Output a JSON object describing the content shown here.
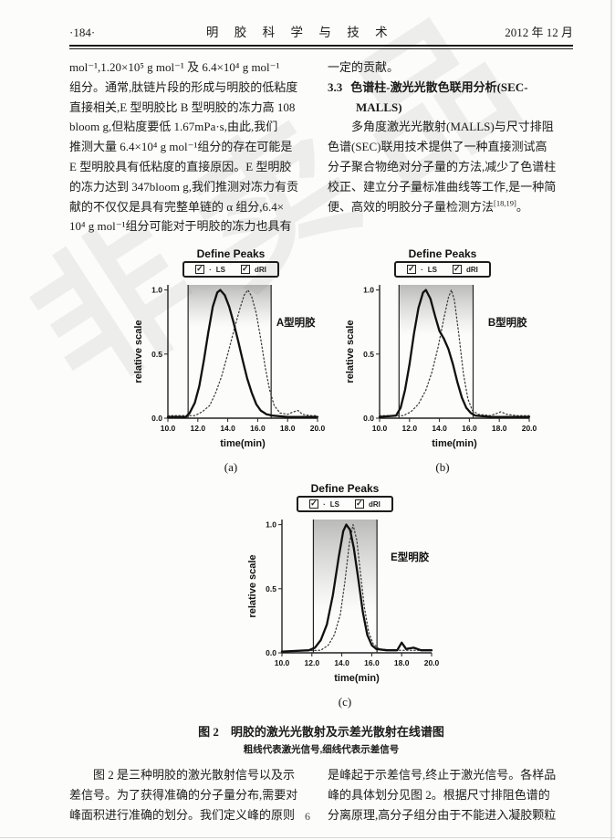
{
  "watermark": {
    "text": "非卖品"
  },
  "header": {
    "page_label": "·184·",
    "journal_title": "明 胶 科 学 与 技 术",
    "issue_date": "2012 年 12 月"
  },
  "left_column": {
    "lines": [
      "mol⁻¹,1.20×10⁵ g mol⁻¹ 及 6.4×10⁴ g mol⁻¹",
      "组分。通常,肽链片段的形成与明胶的低粘度",
      "直接相关,E 型明胶比 B 型明胶的冻力高 108",
      "bloom g,但粘度要低 1.67mPa·s,由此,我们",
      "推测大量 6.4×10⁴ g mol⁻¹组分的存在可能是",
      "E 型明胶具有低粘度的直接原因。E 型明胶",
      "的冻力达到 347bloom g,我们推测对冻力有贡",
      "献的不仅仅是具有完整单链的 α 组分,6.4×",
      "10⁴ g mol⁻¹组分可能对于明胶的冻力也具有"
    ]
  },
  "right_column": {
    "carry_line": "一定的贡献。",
    "section_no": "3.3",
    "section_title_line1": "色谱柱-激光光散色联用分析(SEC-",
    "section_title_line2": "MALLS)",
    "body_lines": [
      "多角度激光光散射(MALLS)与尺寸排阻",
      "色谱(SEC)联用技术提供了一种直接测试高",
      "分子聚合物绝对分子量的方法,减少了色谱柱",
      "校正、建立分子量标准曲线等工作,是一种简"
    ],
    "last_line_text": "便、高效的明胶分子量检测方法",
    "last_line_ref": "[18,19]",
    "last_line_end": "。"
  },
  "figure": {
    "subfig_labels": [
      "(a)",
      "(b)",
      "(c)"
    ],
    "caption": "图 2　明胶的激光光散射及示差光散射在线谱图",
    "subcaption": "粗线代表激光信号,细线代表示差信号"
  },
  "chart_data": [
    {
      "type": "line",
      "panel": "a",
      "title": "Define Peaks",
      "legend": {
        "ls_label": "LS",
        "dri_label": "dRI",
        "separator": "·"
      },
      "sample_label": "A型明胶",
      "xlabel": "time(min)",
      "ylabel": "relative scale",
      "xlim": [
        10,
        20
      ],
      "ylim": [
        0,
        1.04
      ],
      "x_ticks": [
        10,
        12,
        14,
        16,
        18,
        20
      ],
      "y_ticks": [
        0,
        0.5,
        1
      ],
      "grid": false,
      "peak_region": [
        11.35,
        16.9
      ],
      "shade_depth": 0.32,
      "series": [
        {
          "name": "LS",
          "line": "solid",
          "points": [
            [
              10,
              0.01
            ],
            [
              11.2,
              0.01
            ],
            [
              11.45,
              0.04
            ],
            [
              11.8,
              0.12
            ],
            [
              12.1,
              0.25
            ],
            [
              12.4,
              0.45
            ],
            [
              12.7,
              0.67
            ],
            [
              13.0,
              0.87
            ],
            [
              13.3,
              0.98
            ],
            [
              13.5,
              1.0
            ],
            [
              13.8,
              0.96
            ],
            [
              14.1,
              0.87
            ],
            [
              14.4,
              0.74
            ],
            [
              14.7,
              0.6
            ],
            [
              15.0,
              0.45
            ],
            [
              15.3,
              0.31
            ],
            [
              15.6,
              0.2
            ],
            [
              15.9,
              0.11
            ],
            [
              16.2,
              0.06
            ],
            [
              16.6,
              0.03
            ],
            [
              17.0,
              0.02
            ],
            [
              18.0,
              0.01
            ],
            [
              20,
              0.01
            ]
          ]
        },
        {
          "name": "dRI",
          "line": "dotted",
          "points": [
            [
              10,
              0.02
            ],
            [
              11.8,
              0.02
            ],
            [
              12.3,
              0.05
            ],
            [
              12.8,
              0.1
            ],
            [
              13.2,
              0.2
            ],
            [
              13.6,
              0.33
            ],
            [
              14.0,
              0.5
            ],
            [
              14.4,
              0.68
            ],
            [
              14.8,
              0.85
            ],
            [
              15.1,
              0.96
            ],
            [
              15.35,
              1.0
            ],
            [
              15.6,
              0.95
            ],
            [
              15.9,
              0.82
            ],
            [
              16.2,
              0.62
            ],
            [
              16.5,
              0.4
            ],
            [
              16.8,
              0.22
            ],
            [
              17.1,
              0.1
            ],
            [
              17.5,
              0.04
            ],
            [
              18.0,
              0.03
            ],
            [
              18.4,
              0.05
            ],
            [
              18.7,
              0.06
            ],
            [
              19.0,
              0.03
            ],
            [
              19.5,
              0.02
            ],
            [
              20,
              0.02
            ]
          ]
        }
      ]
    },
    {
      "type": "line",
      "panel": "b",
      "title": "Define Peaks",
      "legend": {
        "ls_label": "LS",
        "dri_label": "dRI",
        "separator": "·"
      },
      "sample_label": "B型明胶",
      "xlabel": "time(min)",
      "ylabel": "relative scale",
      "xlim": [
        10,
        20
      ],
      "ylim": [
        0,
        1.04
      ],
      "x_ticks": [
        10,
        12,
        14,
        16,
        18,
        20
      ],
      "y_ticks": [
        0,
        0.5,
        1
      ],
      "grid": false,
      "peak_region": [
        11.3,
        16.25
      ],
      "shade_depth": 0.38,
      "series": [
        {
          "name": "LS",
          "line": "solid",
          "points": [
            [
              10,
              0.01
            ],
            [
              11.1,
              0.02
            ],
            [
              11.4,
              0.08
            ],
            [
              11.7,
              0.22
            ],
            [
              12.0,
              0.42
            ],
            [
              12.3,
              0.66
            ],
            [
              12.6,
              0.86
            ],
            [
              12.9,
              0.98
            ],
            [
              13.1,
              1.0
            ],
            [
              13.4,
              0.93
            ],
            [
              13.7,
              0.8
            ],
            [
              14.0,
              0.68
            ],
            [
              14.3,
              0.62
            ],
            [
              14.6,
              0.54
            ],
            [
              14.9,
              0.42
            ],
            [
              15.2,
              0.28
            ],
            [
              15.5,
              0.16
            ],
            [
              15.8,
              0.08
            ],
            [
              16.1,
              0.04
            ],
            [
              16.4,
              0.02
            ],
            [
              17.5,
              0.01
            ],
            [
              20,
              0.01
            ]
          ]
        },
        {
          "name": "dRI",
          "line": "dotted",
          "points": [
            [
              10,
              0.02
            ],
            [
              11.6,
              0.02
            ],
            [
              12.1,
              0.05
            ],
            [
              12.6,
              0.11
            ],
            [
              13.1,
              0.22
            ],
            [
              13.5,
              0.36
            ],
            [
              13.9,
              0.55
            ],
            [
              14.3,
              0.78
            ],
            [
              14.6,
              0.94
            ],
            [
              14.8,
              1.0
            ],
            [
              15.0,
              0.92
            ],
            [
              15.3,
              0.65
            ],
            [
              15.6,
              0.35
            ],
            [
              15.9,
              0.15
            ],
            [
              16.2,
              0.06
            ],
            [
              16.6,
              0.03
            ],
            [
              17.4,
              0.02
            ],
            [
              17.9,
              0.04
            ],
            [
              18.1,
              0.05
            ],
            [
              18.5,
              0.03
            ],
            [
              19.2,
              0.02
            ],
            [
              20,
              0.02
            ]
          ]
        }
      ]
    },
    {
      "type": "line",
      "panel": "c",
      "title": "Define Peaks",
      "legend": {
        "ls_label": "LS",
        "dri_label": "dRI",
        "separator": "·"
      },
      "sample_label": "E型明胶",
      "xlabel": "time(min)",
      "ylabel": "relative scale",
      "xlim": [
        10,
        20
      ],
      "ylim": [
        0,
        1.04
      ],
      "x_ticks": [
        10,
        12,
        14,
        16,
        18,
        20
      ],
      "y_ticks": [
        0,
        0.5,
        1
      ],
      "grid": false,
      "peak_region": [
        12.1,
        16.35
      ],
      "shade_depth": 0.7,
      "series": [
        {
          "name": "LS",
          "line": "solid",
          "points": [
            [
              10,
              0.01
            ],
            [
              11.8,
              0.02
            ],
            [
              12.2,
              0.04
            ],
            [
              12.6,
              0.1
            ],
            [
              13.0,
              0.22
            ],
            [
              13.4,
              0.45
            ],
            [
              13.8,
              0.75
            ],
            [
              14.1,
              0.95
            ],
            [
              14.3,
              1.0
            ],
            [
              14.55,
              0.96
            ],
            [
              14.8,
              0.82
            ],
            [
              15.1,
              0.58
            ],
            [
              15.4,
              0.32
            ],
            [
              15.7,
              0.14
            ],
            [
              16.0,
              0.06
            ],
            [
              16.3,
              0.03
            ],
            [
              17.0,
              0.02
            ],
            [
              17.7,
              0.02
            ],
            [
              18.0,
              0.08
            ],
            [
              18.3,
              0.03
            ],
            [
              18.8,
              0.04
            ],
            [
              19.3,
              0.02
            ],
            [
              20,
              0.02
            ]
          ]
        },
        {
          "name": "dRI",
          "line": "dotted",
          "points": [
            [
              10,
              0.01
            ],
            [
              12.6,
              0.02
            ],
            [
              13.1,
              0.06
            ],
            [
              13.5,
              0.14
            ],
            [
              13.9,
              0.3
            ],
            [
              14.2,
              0.55
            ],
            [
              14.5,
              0.85
            ],
            [
              14.75,
              1.0
            ],
            [
              15.0,
              0.88
            ],
            [
              15.25,
              0.62
            ],
            [
              15.5,
              0.36
            ],
            [
              15.8,
              0.16
            ],
            [
              16.1,
              0.07
            ],
            [
              16.5,
              0.03
            ],
            [
              17.5,
              0.02
            ],
            [
              20,
              0.02
            ]
          ]
        }
      ]
    }
  ],
  "bottom_left": {
    "lines": [
      "图 2 是三种明胶的激光散射信号以及示",
      "差信号。为了获得准确的分子量分布,需要对",
      "峰面积进行准确的划分。我们定义峰的原则"
    ]
  },
  "bottom_right": {
    "lines": [
      "是峰起于示差信号,终止于激光信号。各样品",
      "峰的具体划分见图 2。根据尺寸排阻色谱的",
      "分离原理,高分子组分由于不能进入凝胶颗粒"
    ]
  },
  "footer": {
    "page_number": "6"
  }
}
